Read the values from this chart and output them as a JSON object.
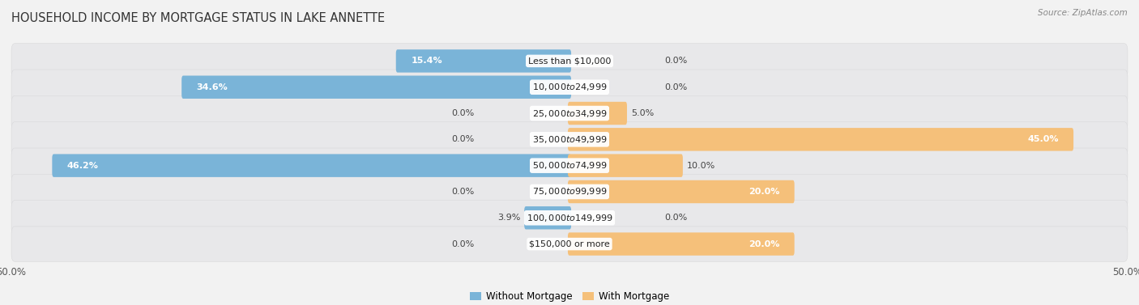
{
  "title": "HOUSEHOLD INCOME BY MORTGAGE STATUS IN LAKE ANNETTE",
  "source": "Source: ZipAtlas.com",
  "categories": [
    "Less than $10,000",
    "$10,000 to $24,999",
    "$25,000 to $34,999",
    "$35,000 to $49,999",
    "$50,000 to $74,999",
    "$75,000 to $99,999",
    "$100,000 to $149,999",
    "$150,000 or more"
  ],
  "without_mortgage": [
    15.4,
    34.6,
    0.0,
    0.0,
    46.2,
    0.0,
    3.9,
    0.0
  ],
  "with_mortgage": [
    0.0,
    0.0,
    5.0,
    45.0,
    10.0,
    20.0,
    0.0,
    20.0
  ],
  "color_without": "#7ab4d8",
  "color_with": "#f5c07a",
  "color_without_light": "#b8d4e8",
  "color_with_light": "#f8d9a8",
  "xlim": 50.0,
  "fig_bg": "#f2f2f2",
  "row_bg": "#e8e8e8",
  "row_bg_alt": "#e0e0e0",
  "title_fontsize": 10.5,
  "axis_fontsize": 8.5,
  "cat_fontsize": 8,
  "val_fontsize": 8,
  "legend_fontsize": 8.5
}
